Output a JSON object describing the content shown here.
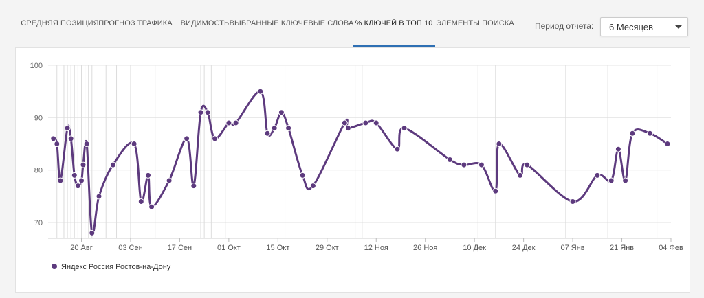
{
  "tabs": [
    {
      "label": "СРЕДНЯЯ ПОЗИЦИЯ",
      "active": false
    },
    {
      "label": "ПРОГНОЗ ТРАФИКА",
      "active": false
    },
    {
      "label": "ВИДИМОСТЬ",
      "active": false
    },
    {
      "label": "ВЫБРАННЫЕ КЛЮЧЕВЫЕ СЛОВА",
      "active": false
    },
    {
      "label": "% КЛЮЧЕЙ В ТОП 10",
      "active": true
    },
    {
      "label": "ЭЛЕМЕНТЫ ПОИСКА",
      "active": false
    }
  ],
  "period": {
    "label": "Период отчета:",
    "value": "6 Месяцев"
  },
  "colors": {
    "series": "#5d3a7e",
    "accent": "#2e6fb3"
  },
  "chart_data": {
    "type": "line",
    "title": "",
    "xlabel": "",
    "ylabel": "",
    "ylim": [
      67,
      100
    ],
    "yticks": [
      70,
      80,
      90,
      100
    ],
    "grid": true,
    "legend_position": "bottom-left",
    "x_ticks": [
      "20 Авг",
      "03 Сен",
      "17 Сен",
      "01 Окт",
      "15 Окт",
      "29 Окт",
      "12 Ноя",
      "26 Ноя",
      "10 Дек",
      "24 Дек",
      "07 Янв",
      "21 Янв",
      "04 Фев"
    ],
    "x_tick_days": [
      17,
      31,
      45,
      59,
      73,
      87,
      101,
      115,
      129,
      143,
      157,
      171,
      185
    ],
    "series": [
      {
        "name": "Яндекс Россия Ростов-на-Дону",
        "points": [
          {
            "date": "09 Авг",
            "day": 9,
            "value": 86
          },
          {
            "date": "10 Авг",
            "day": 10,
            "value": 85
          },
          {
            "date": "11 Авг",
            "day": 11,
            "value": 78
          },
          {
            "date": "13 Авг",
            "day": 13,
            "value": 88
          },
          {
            "date": "14 Авг",
            "day": 14,
            "value": 86
          },
          {
            "date": "15 Авг",
            "day": 15,
            "value": 79
          },
          {
            "date": "16 Авг",
            "day": 16,
            "value": 77
          },
          {
            "date": "17 Авг",
            "day": 17,
            "value": 78
          },
          {
            "date": "17 Авг",
            "day": 17.5,
            "value": 81
          },
          {
            "date": "18 Авг",
            "day": 18.5,
            "value": 85
          },
          {
            "date": "20 Авг",
            "day": 20,
            "value": 68
          },
          {
            "date": "22 Авг",
            "day": 22,
            "value": 75
          },
          {
            "date": "26 Авг",
            "day": 26,
            "value": 81
          },
          {
            "date": "01 Сен",
            "day": 32,
            "value": 85
          },
          {
            "date": "03 Сен",
            "day": 34,
            "value": 74
          },
          {
            "date": "05 Сен",
            "day": 36,
            "value": 79
          },
          {
            "date": "06 Сен",
            "day": 37,
            "value": 73
          },
          {
            "date": "11 Сен",
            "day": 42,
            "value": 78
          },
          {
            "date": "16 Сен",
            "day": 47,
            "value": 86
          },
          {
            "date": "18 Сен",
            "day": 49,
            "value": 77
          },
          {
            "date": "20 Сен",
            "day": 51,
            "value": 91
          },
          {
            "date": "22 Сен",
            "day": 53,
            "value": 91
          },
          {
            "date": "24 Сен",
            "day": 55,
            "value": 86
          },
          {
            "date": "28 Сен",
            "day": 59,
            "value": 89
          },
          {
            "date": "30 Сен",
            "day": 61,
            "value": 89
          },
          {
            "date": "07 Окт",
            "day": 68,
            "value": 95
          },
          {
            "date": "09 Окт",
            "day": 70,
            "value": 87
          },
          {
            "date": "11 Окт",
            "day": 72,
            "value": 88
          },
          {
            "date": "13 Окт",
            "day": 74,
            "value": 91
          },
          {
            "date": "15 Окт",
            "day": 76,
            "value": 88
          },
          {
            "date": "19 Окт",
            "day": 80,
            "value": 79
          },
          {
            "date": "22 Окт",
            "day": 83,
            "value": 77
          },
          {
            "date": "31 Окт",
            "day": 92,
            "value": 89
          },
          {
            "date": "01 Ноя",
            "day": 93,
            "value": 88
          },
          {
            "date": "06 Ноя",
            "day": 98,
            "value": 89
          },
          {
            "date": "09 Ноя",
            "day": 101,
            "value": 89
          },
          {
            "date": "15 Ноя",
            "day": 107,
            "value": 84
          },
          {
            "date": "17 Ноя",
            "day": 109,
            "value": 88
          },
          {
            "date": "30 Ноя",
            "day": 122,
            "value": 82
          },
          {
            "date": "04 Дек",
            "day": 126,
            "value": 81
          },
          {
            "date": "09 Дек",
            "day": 131,
            "value": 81
          },
          {
            "date": "13 Дек",
            "day": 135,
            "value": 76
          },
          {
            "date": "14 Дек",
            "day": 136,
            "value": 85
          },
          {
            "date": "20 Дек",
            "day": 142,
            "value": 79
          },
          {
            "date": "22 Дек",
            "day": 144,
            "value": 81
          },
          {
            "date": "04 Янв",
            "day": 157,
            "value": 74
          },
          {
            "date": "11 Янв",
            "day": 164,
            "value": 79
          },
          {
            "date": "15 Янв",
            "day": 168,
            "value": 78
          },
          {
            "date": "17 Янв",
            "day": 170,
            "value": 84
          },
          {
            "date": "19 Янв",
            "day": 172,
            "value": 78
          },
          {
            "date": "21 Янв",
            "day": 174,
            "value": 87
          },
          {
            "date": "26 Янв",
            "day": 179,
            "value": 87
          },
          {
            "date": "31 Янв",
            "day": 184,
            "value": 85
          }
        ]
      }
    ],
    "vertical_markers": [
      10,
      12,
      13,
      14,
      15,
      16,
      17,
      18,
      19,
      20,
      24,
      27,
      31,
      38,
      51,
      52,
      54,
      58,
      75,
      95,
      97,
      130,
      135,
      155,
      167,
      181
    ]
  }
}
